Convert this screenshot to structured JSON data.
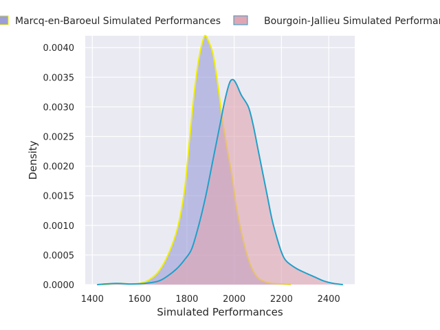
{
  "chart_data": {
    "type": "area",
    "title": "",
    "xlabel": "Simulated Performances",
    "ylabel": "Density",
    "xlim": [
      1370,
      2510
    ],
    "ylim": [
      0,
      0.0042
    ],
    "xticks": [
      1400,
      1600,
      1800,
      2000,
      2200,
      2400
    ],
    "yticks": [
      0.0,
      0.0005,
      0.001,
      0.0015,
      0.002,
      0.0025,
      0.003,
      0.0035,
      0.004
    ],
    "ytick_labels": [
      "0.0000",
      "0.0005",
      "0.0010",
      "0.0015",
      "0.0020",
      "0.0025",
      "0.0030",
      "0.0035",
      "0.0040"
    ],
    "grid": true,
    "legend_position": "top",
    "series": [
      {
        "name": "Marcq-en-Baroeul Simulated Performances",
        "fill": "#9c9ed8",
        "line": "#f0f000",
        "x": [
          1440,
          1480,
          1520,
          1560,
          1600,
          1640,
          1680,
          1720,
          1760,
          1790,
          1810,
          1830,
          1850,
          1870,
          1880,
          1890,
          1910,
          1930,
          1950,
          1970,
          1990,
          2010,
          2040,
          2070,
          2100,
          2130,
          2160,
          2200,
          2240
        ],
        "values": [
          0.0,
          1e-05,
          2e-05,
          1e-05,
          2e-05,
          8e-05,
          0.00022,
          0.0005,
          0.00095,
          0.0016,
          0.0024,
          0.0032,
          0.0038,
          0.00415,
          0.0042,
          0.00412,
          0.0039,
          0.0034,
          0.0028,
          0.0023,
          0.00185,
          0.0013,
          0.00072,
          0.00032,
          0.00012,
          5e-05,
          2e-05,
          1e-05,
          0.0
        ]
      },
      {
        "name": "Bourgoin-Jallieu Simulated Performances",
        "fill": "#e0a6b3",
        "line": "#1fa0c8",
        "x": [
          1420,
          1500,
          1560,
          1620,
          1680,
          1720,
          1760,
          1790,
          1820,
          1850,
          1880,
          1910,
          1940,
          1960,
          1980,
          1995,
          2010,
          2030,
          2060,
          2080,
          2100,
          2120,
          2140,
          2160,
          2180,
          2200,
          2220,
          2260,
          2300,
          2340,
          2380,
          2420,
          2460
        ],
        "values": [
          0.0,
          2e-05,
          1e-05,
          2e-05,
          6e-05,
          0.00015,
          0.00028,
          0.00042,
          0.0006,
          0.001,
          0.0015,
          0.0021,
          0.0027,
          0.0031,
          0.0034,
          0.00346,
          0.00338,
          0.0032,
          0.003,
          0.0027,
          0.0023,
          0.0019,
          0.0015,
          0.0011,
          0.0008,
          0.00055,
          0.0004,
          0.00028,
          0.0002,
          0.00013,
          6e-05,
          2e-05,
          0.0
        ]
      }
    ]
  }
}
